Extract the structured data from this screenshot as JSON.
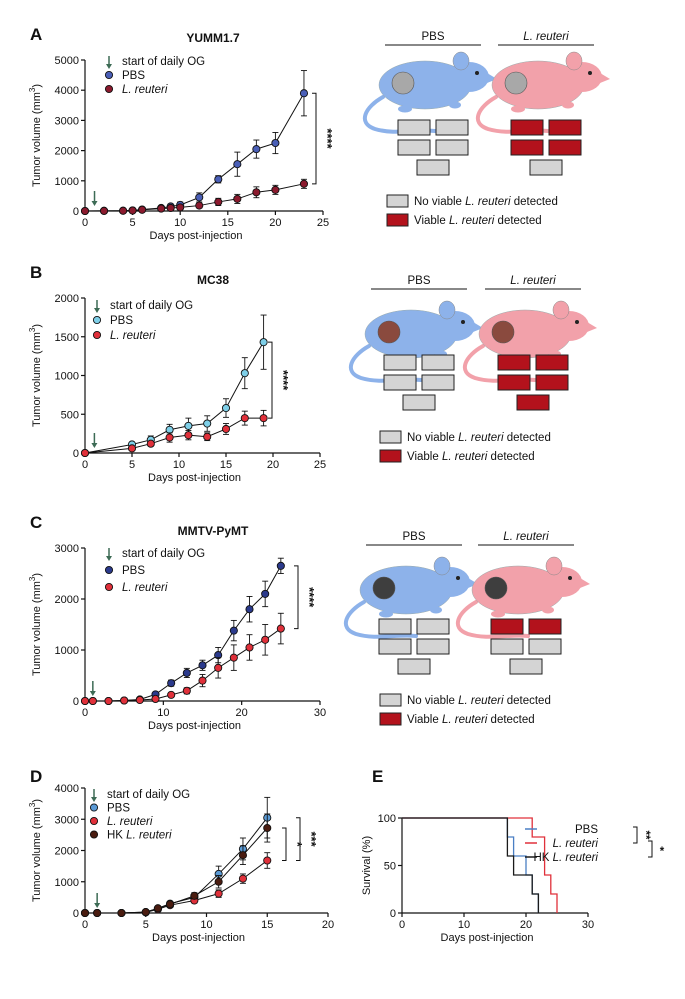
{
  "figure": {
    "panels": [
      "A",
      "B",
      "C",
      "D",
      "E"
    ]
  },
  "common": {
    "start_label": "start of daily OG",
    "no_viable": "No viable",
    "viable": "Viable",
    "detected": "detected",
    "species": "L. reuteri",
    "cage_pbs": "PBS",
    "cage_lr": "L. reuteri",
    "colors": {
      "pbs_dark": "#2b3a8c",
      "pbs_mid": "#4a5fb7",
      "pbs_light": "#7ecfe8",
      "reuteri": "#8b1a2e",
      "reuteri_bright": "#e0303a",
      "hk": "#1a1a1a",
      "box_red": "#b3121c",
      "box_grey": "#d4d4d4",
      "mouse_blue": "#8db2ea",
      "mouse_pink": "#f2a1aa"
    }
  },
  "chart_data": [
    {
      "panel": "A",
      "type": "line",
      "title": "YUMM1.7",
      "xlabel": "Days post-injection",
      "ylabel": "Tumor volume (mm3)",
      "xlim": [
        0,
        25
      ],
      "ylim": [
        0,
        5000
      ],
      "xticks": [
        0,
        5,
        10,
        15,
        20,
        25
      ],
      "yticks": [
        0,
        1000,
        2000,
        3000,
        4000,
        5000
      ],
      "arrow_x": 1,
      "series": [
        {
          "name": "PBS",
          "color": "#4a5fb7",
          "x": [
            0,
            2,
            4,
            5,
            6,
            8,
            9,
            10,
            12,
            14,
            16,
            18,
            20,
            23
          ],
          "y": [
            0,
            5,
            10,
            20,
            50,
            100,
            150,
            200,
            450,
            1050,
            1550,
            2050,
            2250,
            3900
          ],
          "err": [
            0,
            5,
            10,
            15,
            30,
            60,
            80,
            100,
            150,
            120,
            400,
            300,
            350,
            750
          ]
        },
        {
          "name": "L. reuteri",
          "color": "#8b1a2e",
          "x": [
            0,
            2,
            4,
            5,
            6,
            8,
            9,
            10,
            12,
            14,
            16,
            18,
            20,
            23
          ],
          "y": [
            0,
            5,
            8,
            15,
            40,
            80,
            100,
            120,
            180,
            300,
            400,
            620,
            700,
            900
          ],
          "err": [
            0,
            5,
            8,
            10,
            20,
            40,
            50,
            60,
            80,
            120,
            150,
            180,
            150,
            150
          ]
        }
      ],
      "significance": "****",
      "cages": {
        "pbs": [
          "grey",
          "grey",
          "grey",
          "grey",
          "grey"
        ],
        "lr": [
          "red",
          "red",
          "red",
          "red",
          "grey"
        ]
      }
    },
    {
      "panel": "B",
      "type": "line",
      "title": "MC38",
      "xlabel": "Days post-injection",
      "ylabel": "Tumor volume (mm3)",
      "xlim": [
        0,
        25
      ],
      "ylim": [
        0,
        2000
      ],
      "xticks": [
        0,
        5,
        10,
        15,
        20,
        25
      ],
      "yticks": [
        0,
        500,
        1000,
        1500,
        2000
      ],
      "arrow_x": 1,
      "series": [
        {
          "name": "PBS",
          "color": "#7ecfe8",
          "x": [
            0,
            5,
            7,
            9,
            11,
            13,
            15,
            17,
            19
          ],
          "y": [
            0,
            110,
            170,
            300,
            350,
            380,
            580,
            1030,
            1430
          ],
          "err": [
            0,
            30,
            50,
            70,
            100,
            100,
            120,
            200,
            350
          ]
        },
        {
          "name": "L. reuteri",
          "color": "#e0303a",
          "x": [
            0,
            5,
            7,
            9,
            11,
            13,
            15,
            17,
            19
          ],
          "y": [
            0,
            60,
            120,
            200,
            230,
            210,
            310,
            450,
            450
          ],
          "err": [
            0,
            20,
            30,
            60,
            60,
            50,
            70,
            90,
            100
          ]
        }
      ],
      "significance": "****",
      "cages": {
        "pbs": [
          "grey",
          "grey",
          "grey",
          "grey",
          "grey"
        ],
        "lr": [
          "red",
          "red",
          "red",
          "red",
          "red"
        ]
      }
    },
    {
      "panel": "C",
      "type": "line",
      "title": "MMTV-PyMT",
      "xlabel": "Days post-injection",
      "ylabel": "Tumor volume (mm3)",
      "xlim": [
        0,
        30
      ],
      "ylim": [
        0,
        3000
      ],
      "xticks": [
        0,
        10,
        20,
        30
      ],
      "yticks": [
        0,
        1000,
        2000,
        3000
      ],
      "arrow_x": 1,
      "series": [
        {
          "name": "PBS",
          "color": "#2b3a8c",
          "x": [
            0,
            1,
            3,
            5,
            7,
            9,
            11,
            13,
            15,
            17,
            19,
            21,
            23,
            25
          ],
          "y": [
            0,
            0,
            0,
            10,
            30,
            130,
            350,
            550,
            700,
            900,
            1380,
            1800,
            2100,
            2650
          ],
          "err": [
            0,
            0,
            0,
            5,
            10,
            30,
            60,
            90,
            100,
            150,
            200,
            250,
            250,
            150
          ]
        },
        {
          "name": "L. reuteri",
          "color": "#e0303a",
          "x": [
            0,
            1,
            3,
            5,
            7,
            9,
            11,
            13,
            15,
            17,
            19,
            21,
            23,
            25
          ],
          "y": [
            0,
            0,
            0,
            10,
            20,
            40,
            120,
            200,
            400,
            650,
            850,
            1050,
            1200,
            1420
          ],
          "err": [
            0,
            0,
            0,
            5,
            10,
            20,
            40,
            60,
            120,
            200,
            250,
            250,
            300,
            300
          ]
        }
      ],
      "significance": "****",
      "cages": {
        "pbs": [
          "grey",
          "grey",
          "grey",
          "grey",
          "grey"
        ],
        "lr": [
          "red",
          "red",
          "grey",
          "grey",
          "grey"
        ]
      }
    },
    {
      "panel": "D",
      "type": "line",
      "title": "",
      "xlabel": "Days post-injection",
      "ylabel": "Tumor volume (mm3)",
      "xlim": [
        0,
        20
      ],
      "ylim": [
        0,
        4000
      ],
      "xticks": [
        0,
        5,
        10,
        15,
        20
      ],
      "yticks": [
        0,
        1000,
        2000,
        3000,
        4000
      ],
      "arrow_x": 1,
      "series": [
        {
          "name": "PBS",
          "color": "#5a9ad5",
          "x": [
            0,
            1,
            3,
            5,
            6,
            7,
            9,
            11,
            13,
            15
          ],
          "y": [
            0,
            0,
            0,
            30,
            150,
            300,
            500,
            1250,
            2050,
            3050
          ],
          "err": [
            0,
            0,
            0,
            10,
            30,
            60,
            100,
            250,
            350,
            650
          ]
        },
        {
          "name": "L. reuteri",
          "color": "#e0303a",
          "x": [
            0,
            1,
            3,
            5,
            6,
            7,
            9,
            11,
            13,
            15
          ],
          "y": [
            0,
            0,
            0,
            20,
            120,
            250,
            400,
            620,
            1100,
            1680
          ],
          "err": [
            0,
            0,
            0,
            10,
            30,
            50,
            80,
            120,
            150,
            250
          ]
        },
        {
          "name": "HK L. reuteri",
          "color": "#4a1c10",
          "x": [
            0,
            1,
            3,
            5,
            6,
            7,
            9,
            11,
            13,
            15
          ],
          "y": [
            0,
            0,
            0,
            30,
            150,
            280,
            550,
            1000,
            1850,
            2720
          ],
          "err": [
            0,
            0,
            0,
            10,
            30,
            60,
            100,
            200,
            300,
            450
          ]
        }
      ],
      "significance_inner": "*",
      "significance_outer": "***"
    },
    {
      "panel": "E",
      "type": "line",
      "title": "",
      "xlabel": "Days post-injection",
      "ylabel": "Survival (%)",
      "xlim": [
        0,
        30
      ],
      "ylim": [
        0,
        100
      ],
      "xticks": [
        0,
        10,
        20,
        30
      ],
      "yticks": [
        0,
        50,
        100
      ],
      "series": [
        {
          "name": "PBS",
          "color": "#4a7fc4",
          "steps": [
            [
              0,
              100
            ],
            [
              17,
              100
            ],
            [
              17,
              80
            ],
            [
              18,
              80
            ],
            [
              18,
              60
            ],
            [
              20,
              60
            ],
            [
              20,
              40
            ],
            [
              21,
              40
            ],
            [
              21,
              20
            ],
            [
              22,
              20
            ],
            [
              22,
              0
            ]
          ]
        },
        {
          "name": "L. reuteri",
          "color": "#e0303a",
          "steps": [
            [
              0,
              100
            ],
            [
              21,
              100
            ],
            [
              21,
              80
            ],
            [
              23,
              80
            ],
            [
              23,
              40
            ],
            [
              24,
              40
            ],
            [
              24,
              20
            ],
            [
              25,
              20
            ],
            [
              25,
              0
            ]
          ]
        },
        {
          "name": "HK L. reuteri",
          "color": "#1a1a1a",
          "steps": [
            [
              0,
              100
            ],
            [
              17,
              100
            ],
            [
              17,
              60
            ],
            [
              18,
              60
            ],
            [
              18,
              40
            ],
            [
              21,
              40
            ],
            [
              21,
              20
            ],
            [
              22,
              20
            ],
            [
              22,
              0
            ]
          ]
        }
      ],
      "significance_a": "**",
      "significance_b": "*"
    }
  ]
}
